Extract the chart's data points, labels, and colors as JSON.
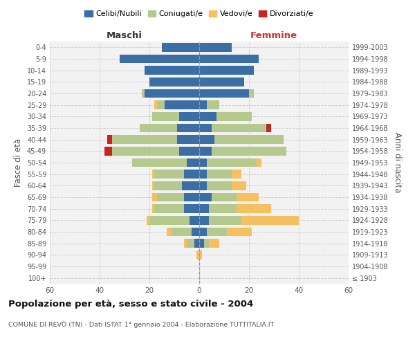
{
  "age_groups": [
    "100+",
    "95-99",
    "90-94",
    "85-89",
    "80-84",
    "75-79",
    "70-74",
    "65-69",
    "60-64",
    "55-59",
    "50-54",
    "45-49",
    "40-44",
    "35-39",
    "30-34",
    "25-29",
    "20-24",
    "15-19",
    "10-14",
    "5-9",
    "0-4"
  ],
  "birth_years": [
    "≤ 1903",
    "1904-1908",
    "1909-1913",
    "1914-1918",
    "1919-1923",
    "1924-1928",
    "1929-1933",
    "1934-1938",
    "1939-1943",
    "1944-1948",
    "1949-1953",
    "1954-1958",
    "1959-1963",
    "1964-1968",
    "1969-1973",
    "1974-1978",
    "1979-1983",
    "1984-1988",
    "1989-1993",
    "1994-1998",
    "1999-2003"
  ],
  "maschi": {
    "celibi": [
      0,
      0,
      0,
      2,
      3,
      4,
      6,
      6,
      7,
      6,
      5,
      8,
      9,
      9,
      8,
      14,
      22,
      20,
      22,
      32,
      15
    ],
    "coniugati": [
      0,
      0,
      0,
      3,
      8,
      16,
      12,
      11,
      11,
      12,
      22,
      27,
      26,
      15,
      11,
      3,
      1,
      0,
      0,
      0,
      0
    ],
    "vedovi": [
      0,
      0,
      1,
      1,
      2,
      1,
      1,
      2,
      1,
      1,
      0,
      0,
      0,
      0,
      0,
      1,
      0,
      0,
      0,
      0,
      0
    ],
    "divorziati": [
      0,
      0,
      0,
      0,
      0,
      0,
      0,
      0,
      0,
      0,
      0,
      3,
      2,
      0,
      0,
      0,
      0,
      0,
      0,
      0,
      0
    ]
  },
  "femmine": {
    "nubili": [
      0,
      0,
      0,
      2,
      3,
      4,
      4,
      5,
      3,
      3,
      3,
      5,
      6,
      5,
      7,
      3,
      20,
      18,
      22,
      24,
      13
    ],
    "coniugate": [
      0,
      0,
      0,
      2,
      8,
      13,
      11,
      10,
      10,
      10,
      20,
      30,
      28,
      22,
      14,
      5,
      2,
      0,
      0,
      0,
      0
    ],
    "vedove": [
      0,
      0,
      1,
      4,
      10,
      23,
      14,
      9,
      6,
      4,
      2,
      0,
      0,
      0,
      0,
      0,
      0,
      0,
      0,
      0,
      0
    ],
    "divorziate": [
      0,
      0,
      0,
      0,
      0,
      0,
      0,
      0,
      0,
      0,
      0,
      0,
      0,
      2,
      0,
      0,
      0,
      0,
      0,
      0,
      0
    ]
  },
  "colors": {
    "celibi_nubili": "#3a6ea5",
    "coniugati": "#b5c98e",
    "vedovi": "#f5c060",
    "divorziati": "#cc2222"
  },
  "xlim": 60,
  "title": "Popolazione per età, sesso e stato civile - 2004",
  "subtitle": "COMUNE DI REVÒ (TN) - Dati ISTAT 1° gennaio 2004 - Elaborazione TUTTITALIA.IT",
  "ylabel_left": "Fasce di età",
  "ylabel_right": "Anni di nascita",
  "label_maschi": "Maschi",
  "label_femmine": "Femmine",
  "legend_labels": [
    "Celibi/Nubili",
    "Coniugati/e",
    "Vedovi/e",
    "Divorziati/e"
  ],
  "background_color": "#ffffff",
  "grid_color": "#cccccc"
}
